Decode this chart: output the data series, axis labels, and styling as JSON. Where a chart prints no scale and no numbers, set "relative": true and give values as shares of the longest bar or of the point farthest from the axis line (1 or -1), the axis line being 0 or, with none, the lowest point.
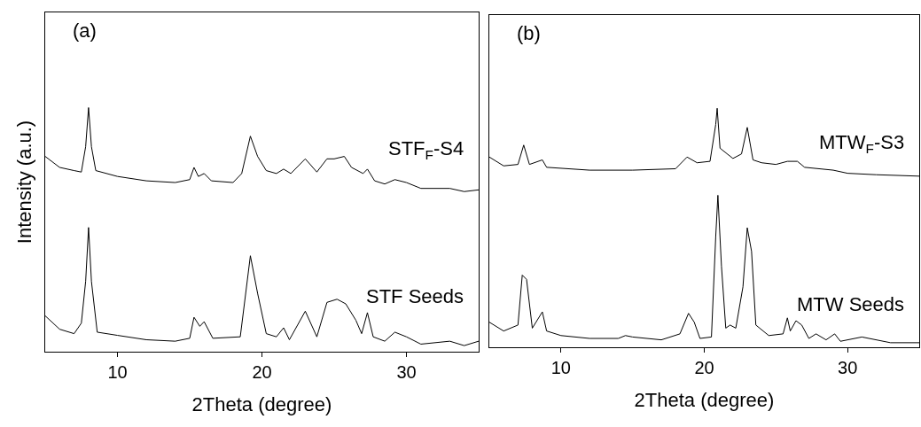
{
  "chart_data": [
    {
      "type": "line",
      "relative": true,
      "xlabel": "2Theta (degree)",
      "ylabel": "Intensity (a.u.)",
      "xlim": [
        5,
        35
      ],
      "xticks": [
        10,
        20,
        30
      ],
      "tick_labels": "x",
      "grid": false,
      "legend": false,
      "marker": "none",
      "line_style": "solid",
      "annotations": [
        "(a)"
      ],
      "series": [
        {
          "name": "STF$_{F}$-S4",
          "color": "#000000",
          "x": [
            5,
            6,
            7,
            7.5,
            7.8,
            8.0,
            8.2,
            8.5,
            10,
            12,
            14,
            15,
            15.3,
            15.6,
            16,
            16.5,
            18,
            18.6,
            19.2,
            19.7,
            20.3,
            21,
            21.5,
            22,
            23,
            23.8,
            24.5,
            25,
            25.7,
            26.2,
            27,
            27.3,
            27.8,
            28.5,
            29.2,
            30,
            31,
            33,
            34,
            35
          ],
          "values": [
            0.8,
            0.755,
            0.742,
            0.736,
            0.84,
            1.0,
            0.84,
            0.742,
            0.718,
            0.7,
            0.693,
            0.705,
            0.755,
            0.718,
            0.73,
            0.7,
            0.693,
            0.73,
            0.883,
            0.8,
            0.742,
            0.73,
            0.748,
            0.73,
            0.79,
            0.736,
            0.79,
            0.79,
            0.8,
            0.755,
            0.73,
            0.748,
            0.7,
            0.687,
            0.705,
            0.693,
            0.669,
            0.669,
            0.656,
            0.663
          ]
        },
        {
          "name": "STF Seeds",
          "color": "#000000",
          "x": [
            5,
            6,
            7,
            7.5,
            7.8,
            8.0,
            8.2,
            8.6,
            10,
            12,
            14,
            15,
            15.3,
            15.7,
            16,
            16.6,
            18.5,
            19.2,
            19.7,
            20.3,
            21,
            21.5,
            21.9,
            23,
            23.8,
            24.5,
            25.2,
            25.8,
            26.5,
            26.9,
            27.3,
            27.7,
            28.5,
            29.2,
            30,
            31,
            33,
            34,
            35
          ],
          "values": [
            0.147,
            0.092,
            0.074,
            0.117,
            0.288,
            0.509,
            0.288,
            0.08,
            0.067,
            0.049,
            0.043,
            0.055,
            0.141,
            0.104,
            0.123,
            0.055,
            0.061,
            0.393,
            0.239,
            0.074,
            0.061,
            0.098,
            0.049,
            0.166,
            0.061,
            0.202,
            0.215,
            0.196,
            0.129,
            0.074,
            0.16,
            0.061,
            0.043,
            0.08,
            0.061,
            0.031,
            0.043,
            0.025,
            0.043
          ]
        }
      ]
    },
    {
      "type": "line",
      "relative": true,
      "xlabel": "2Theta (degree)",
      "xlim": [
        5,
        35
      ],
      "xticks": [
        10,
        20,
        30
      ],
      "tick_labels": "x",
      "grid": false,
      "legend": false,
      "marker": "none",
      "line_style": "solid",
      "annotations": [
        "(b)"
      ],
      "series": [
        {
          "name": "MTW$_{F}$-S3",
          "color": "#000000",
          "x": [
            5,
            6,
            7,
            7.4,
            7.8,
            8.7,
            9,
            12,
            15,
            18,
            18.8,
            19.5,
            20.4,
            20.8,
            20.9,
            21.1,
            22,
            22.6,
            23,
            23.4,
            24,
            25,
            25.8,
            26.5,
            27,
            29,
            30,
            32,
            35
          ],
          "values": [
            0.796,
            0.759,
            0.765,
            0.846,
            0.765,
            0.784,
            0.753,
            0.741,
            0.741,
            0.747,
            0.796,
            0.772,
            0.778,
            0.932,
            1.0,
            0.833,
            0.79,
            0.809,
            0.92,
            0.784,
            0.772,
            0.765,
            0.778,
            0.778,
            0.753,
            0.741,
            0.728,
            0.722,
            0.716
          ]
        },
        {
          "name": "MTW Seeds",
          "color": "#000000",
          "x": [
            5,
            6,
            7,
            7.3,
            7.6,
            8,
            8.7,
            9,
            10,
            12,
            14,
            14.5,
            15,
            17,
            18.3,
            18.9,
            19.3,
            19.7,
            20.5,
            20.8,
            20.95,
            21.2,
            21.5,
            21.8,
            22.2,
            22.7,
            23,
            23.3,
            23.6,
            24.5,
            25.5,
            25.8,
            26,
            26.4,
            26.8,
            27.3,
            27.8,
            28.5,
            29.1,
            29.5,
            31,
            33,
            35
          ],
          "values": [
            0.105,
            0.068,
            0.093,
            0.302,
            0.284,
            0.08,
            0.148,
            0.068,
            0.049,
            0.037,
            0.037,
            0.049,
            0.043,
            0.031,
            0.056,
            0.142,
            0.105,
            0.037,
            0.043,
            0.463,
            0.636,
            0.34,
            0.08,
            0.093,
            0.08,
            0.253,
            0.5,
            0.401,
            0.093,
            0.049,
            0.056,
            0.123,
            0.068,
            0.111,
            0.093,
            0.037,
            0.056,
            0.031,
            0.056,
            0.025,
            0.043,
            0.019,
            0.019
          ]
        }
      ]
    }
  ]
}
